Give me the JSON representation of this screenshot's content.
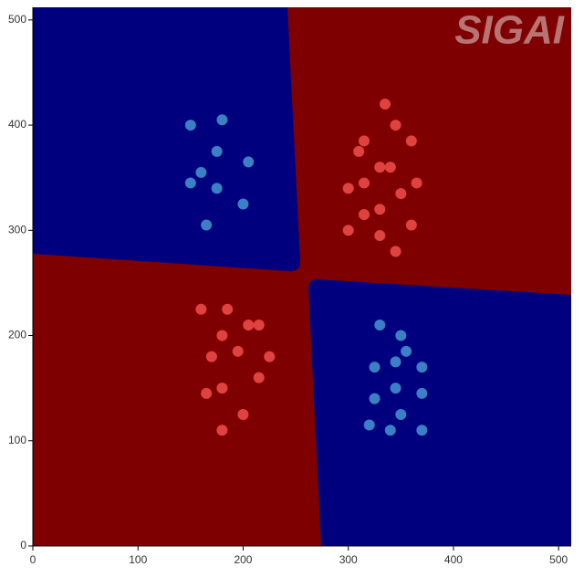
{
  "chart_data": {
    "type": "scatter",
    "watermark": "SIGAI",
    "xlim": [
      0,
      512
    ],
    "ylim": [
      0,
      512
    ],
    "xticks": [
      0,
      100,
      200,
      300,
      400,
      500
    ],
    "yticks": [
      0,
      100,
      200,
      300,
      400,
      500
    ],
    "region_colors": [
      "#7f0000",
      "#00007f"
    ],
    "series": [
      {
        "color": "#e0433f",
        "x": [
          335,
          345,
          315,
          360,
          310,
          330,
          340,
          315,
          365,
          300,
          350,
          330,
          315,
          360,
          300,
          330,
          345,
          160,
          185,
          205,
          215,
          180,
          195,
          170,
          225,
          215,
          180,
          165,
          200,
          180
        ],
        "values": [
          420,
          400,
          385,
          385,
          375,
          360,
          360,
          345,
          345,
          340,
          335,
          320,
          315,
          305,
          300,
          295,
          280,
          225,
          225,
          210,
          210,
          200,
          185,
          180,
          180,
          160,
          150,
          145,
          125,
          110
        ]
      },
      {
        "color": "#3b7fc4",
        "x": [
          150,
          180,
          175,
          205,
          160,
          150,
          175,
          200,
          165,
          330,
          350,
          355,
          345,
          325,
          370,
          345,
          370,
          325,
          350,
          320,
          340,
          370
        ],
        "values": [
          400,
          405,
          375,
          365,
          355,
          345,
          340,
          325,
          305,
          210,
          200,
          185,
          175,
          170,
          170,
          150,
          145,
          140,
          125,
          115,
          110,
          110
        ]
      }
    ]
  }
}
